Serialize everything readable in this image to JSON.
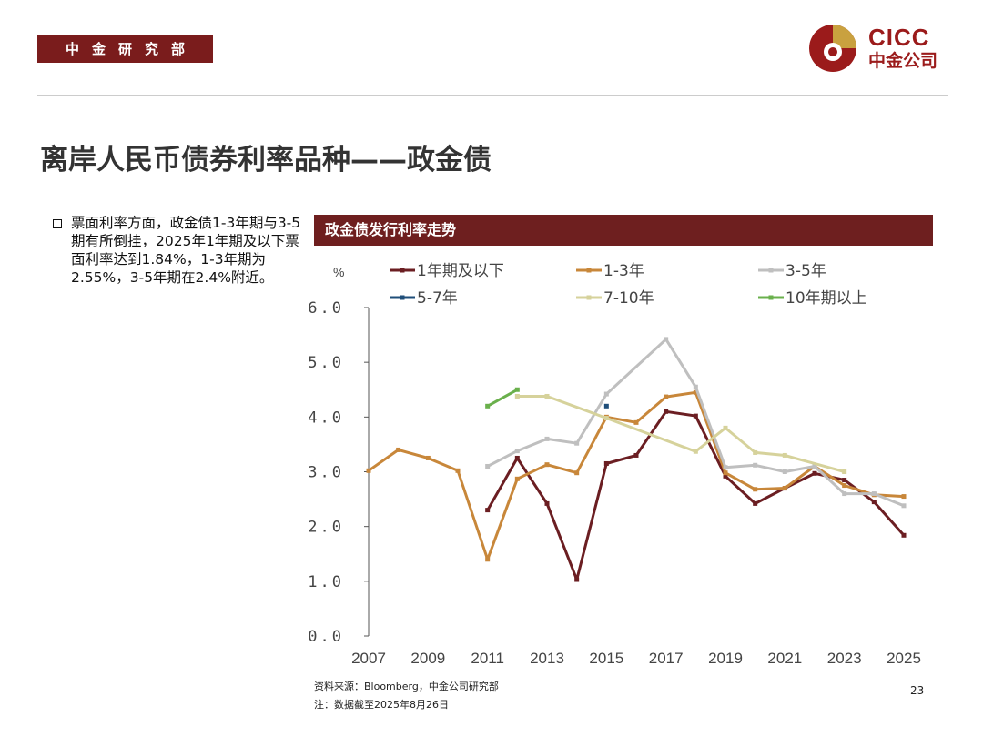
{
  "header": {
    "dept": "中金研究部",
    "logo_en": "CICC",
    "logo_cn": "中金公司",
    "logo_icon": "cicc-logo-icon"
  },
  "page_title": "离岸人民币债券利率品种——政金债",
  "bullet": "票面利率方面，政金债1-3年期与3-5期有所倒挂，2025年1年期及以下票面利率达到1.84%，1-3年期为2.55%，3-5年期在2.4%附近。",
  "chart_title": "政金债发行利率走势",
  "colors": {
    "header_bg": "#7a1c1c",
    "chart_title_bg": "#6e1f1f",
    "logo": "#9b1b1b"
  },
  "chart_data": {
    "type": "line",
    "title": "政金债发行利率走势",
    "ylabel": "%",
    "xlabel": "",
    "ylim": [
      0,
      6
    ],
    "xlim": [
      2007,
      2025
    ],
    "yticks": [
      "0.0",
      "1.0",
      "2.0",
      "3.0",
      "4.0",
      "5.0",
      "6.0"
    ],
    "xticks": [
      "2007",
      "2009",
      "2011",
      "2013",
      "2015",
      "2017",
      "2019",
      "2021",
      "2023",
      "2025"
    ],
    "grid": false,
    "legend_position": "top",
    "series": [
      {
        "name": "1年期及以下",
        "color": "#6b1e22",
        "marker": "square",
        "x": [
          2011,
          2012,
          2013,
          2014,
          2015,
          2016,
          2017,
          2018,
          2019,
          2020,
          2021,
          2022,
          2023,
          2024,
          2025
        ],
        "y": [
          2.3,
          3.25,
          2.42,
          1.03,
          3.15,
          3.3,
          4.1,
          4.02,
          2.92,
          2.42,
          2.7,
          2.97,
          2.85,
          2.45,
          1.84
        ]
      },
      {
        "name": "1-3年",
        "color": "#c8873a",
        "marker": "square",
        "x": [
          2007,
          2008,
          2009,
          2010,
          2011,
          2012,
          2013,
          2014,
          2015,
          2016,
          2017,
          2018,
          2019,
          2020,
          2021,
          2022,
          2023,
          2024,
          2025
        ],
        "y": [
          3.02,
          3.4,
          3.25,
          3.02,
          1.4,
          2.87,
          3.13,
          2.98,
          4.0,
          3.9,
          4.37,
          4.45,
          2.98,
          2.68,
          2.7,
          3.1,
          2.75,
          2.58,
          2.55
        ]
      },
      {
        "name": "3-5年",
        "color": "#bfbfbf",
        "marker": "square",
        "x": [
          2011,
          2012,
          2013,
          2014,
          2015,
          2017,
          2018,
          2019,
          2020,
          2021,
          2022,
          2023,
          2024,
          2025
        ],
        "y": [
          3.1,
          3.38,
          3.6,
          3.52,
          4.42,
          5.42,
          4.55,
          3.08,
          3.12,
          3.0,
          3.1,
          2.6,
          2.6,
          2.38
        ]
      },
      {
        "name": "5-7年",
        "color": "#1f4e79",
        "marker": "square",
        "x": [
          2015
        ],
        "y": [
          4.2
        ]
      },
      {
        "name": "7-10年",
        "color": "#d6d29b",
        "marker": "square",
        "x": [
          2012,
          2013,
          2015,
          2018,
          2019,
          2020,
          2021,
          2023
        ],
        "y": [
          4.38,
          4.38,
          3.98,
          3.37,
          3.8,
          3.35,
          3.3,
          3.0
        ]
      },
      {
        "name": "10年期以上",
        "color": "#6ab04c",
        "marker": "square",
        "x": [
          2011,
          2012
        ],
        "y": [
          4.2,
          4.5
        ]
      }
    ]
  },
  "footer": {
    "source": "资料来源：Bloomberg，中金公司研究部",
    "note": "注：数据截至2025年8月26日",
    "page": "23"
  }
}
